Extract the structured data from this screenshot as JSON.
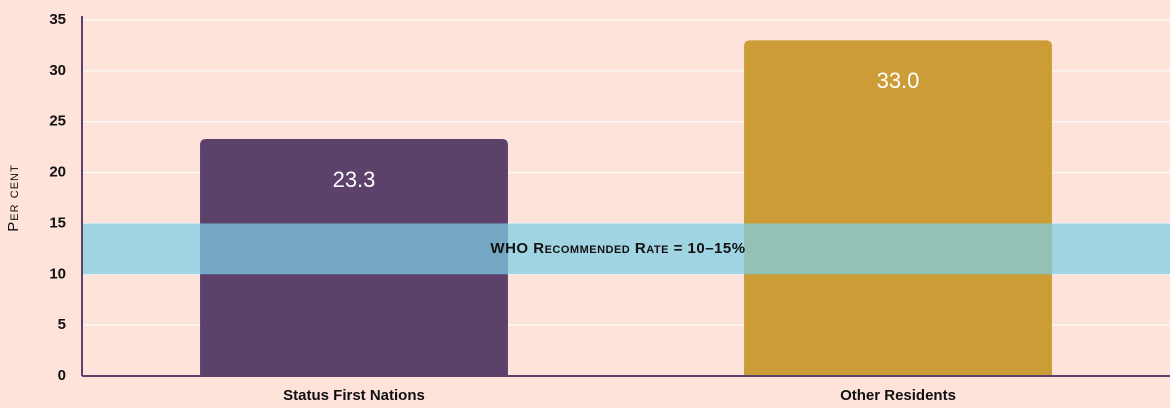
{
  "chart_data": {
    "type": "bar",
    "y_label": "Per cent",
    "categories": [
      "Status First Nations",
      "Other Residents"
    ],
    "values": [
      23.3,
      33.0
    ],
    "value_labels": [
      "23.3",
      "33.0"
    ],
    "colors": [
      "#5c416b",
      "#cc9d36"
    ],
    "ylim": [
      0,
      35
    ],
    "yticks": [
      0,
      5,
      10,
      15,
      20,
      25,
      30,
      35
    ],
    "grid": true,
    "band": {
      "from": 10,
      "to": 15,
      "label": "WHO Recommended Rate = 10–15%",
      "color": "#7dcfe6"
    }
  }
}
